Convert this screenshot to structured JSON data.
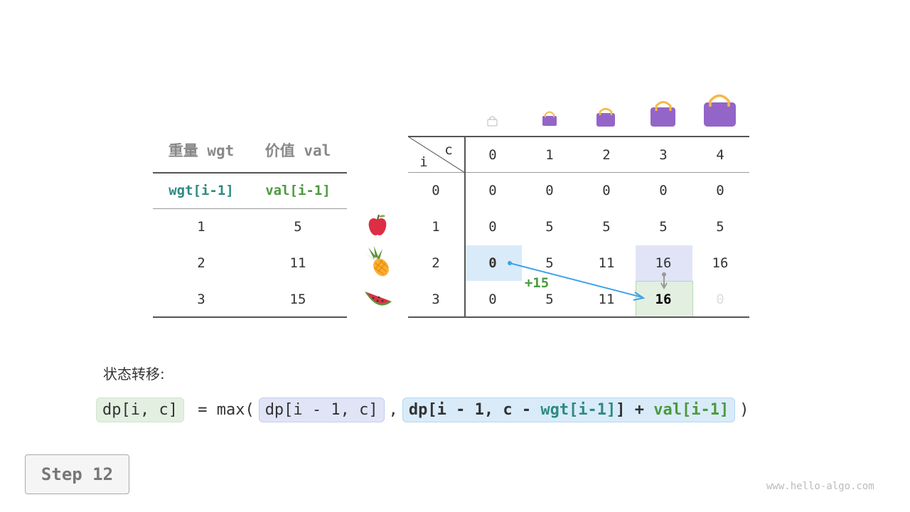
{
  "left_table": {
    "headers": [
      "重量 wgt",
      "价值 val"
    ],
    "subheaders": [
      "wgt[i-1]",
      "val[i-1]"
    ],
    "rows": [
      [
        "1",
        "5"
      ],
      [
        "2",
        "11"
      ],
      [
        "3",
        "15"
      ]
    ]
  },
  "items": [
    "apple-icon",
    "pineapple-icon",
    "watermelon-icon"
  ],
  "dp_table": {
    "corner_i": "i",
    "corner_c": "c",
    "columns": [
      "0",
      "1",
      "2",
      "3",
      "4"
    ],
    "row_labels": [
      "0",
      "1",
      "2",
      "3"
    ],
    "rows": [
      [
        "0",
        "0",
        "0",
        "0",
        "0"
      ],
      [
        "0",
        "5",
        "5",
        "5",
        "5"
      ],
      [
        "0",
        "5",
        "11",
        "16",
        "16"
      ],
      [
        "0",
        "5",
        "11",
        "16",
        "0"
      ]
    ]
  },
  "annotation": "+15",
  "colors": {
    "blue": "#d9ebf9",
    "purple": "#e1e4f7",
    "green": "#e3f0e1",
    "bag": "#9365c9",
    "handle": "#f5b942",
    "teal": "#2e8a82",
    "valgreen": "#4c9a3f",
    "arrow": "#3ea2e8"
  },
  "formula": {
    "label": "状态转移:",
    "lhs": "dp[i, c]",
    "eq": " = max(",
    "opt1": "dp[i - 1, c]",
    "comma": ",",
    "opt2_a": "dp[i - 1, c - ",
    "opt2_wgt": "wgt[i-1]",
    "opt2_b": "] + ",
    "opt2_val": "val[i-1]",
    "close": ")"
  },
  "step": "Step 12",
  "watermark": "www.hello-algo.com"
}
